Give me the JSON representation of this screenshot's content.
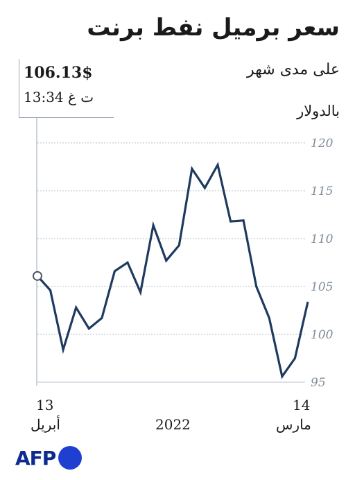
{
  "chart_data": {
    "type": "line",
    "title": "سعر برميل نفط برنت",
    "subtitle": "على مدى شهر",
    "unit": "بالدولار",
    "ylim": [
      95,
      121
    ],
    "yticks": [
      "120",
      "115",
      "110",
      "105",
      "100",
      "95"
    ],
    "grid": "horizontal dotted",
    "x_start": {
      "day": "14",
      "month": "مارس"
    },
    "x_end": {
      "day": "13",
      "month": "أبريل"
    },
    "x_year": "2022",
    "series": [
      {
        "color": "#1f3a5f",
        "values": [
          103.4,
          97.5,
          95.6,
          101.7,
          105.0,
          111.9,
          111.8,
          117.7,
          115.3,
          117.3,
          109.3,
          107.7,
          111.4,
          104.4,
          107.5,
          106.6,
          101.7,
          100.6,
          102.8,
          98.4,
          104.6,
          106.1
        ]
      }
    ],
    "latest": {
      "value": "106.13$",
      "time": "13:34 ت غ"
    }
  },
  "logo": {
    "text": "AFP",
    "color": "#0c2a8f"
  },
  "colors": {
    "line": "#1f3a5f",
    "grid": "#b6c0cc",
    "marker": "#4a5566"
  }
}
